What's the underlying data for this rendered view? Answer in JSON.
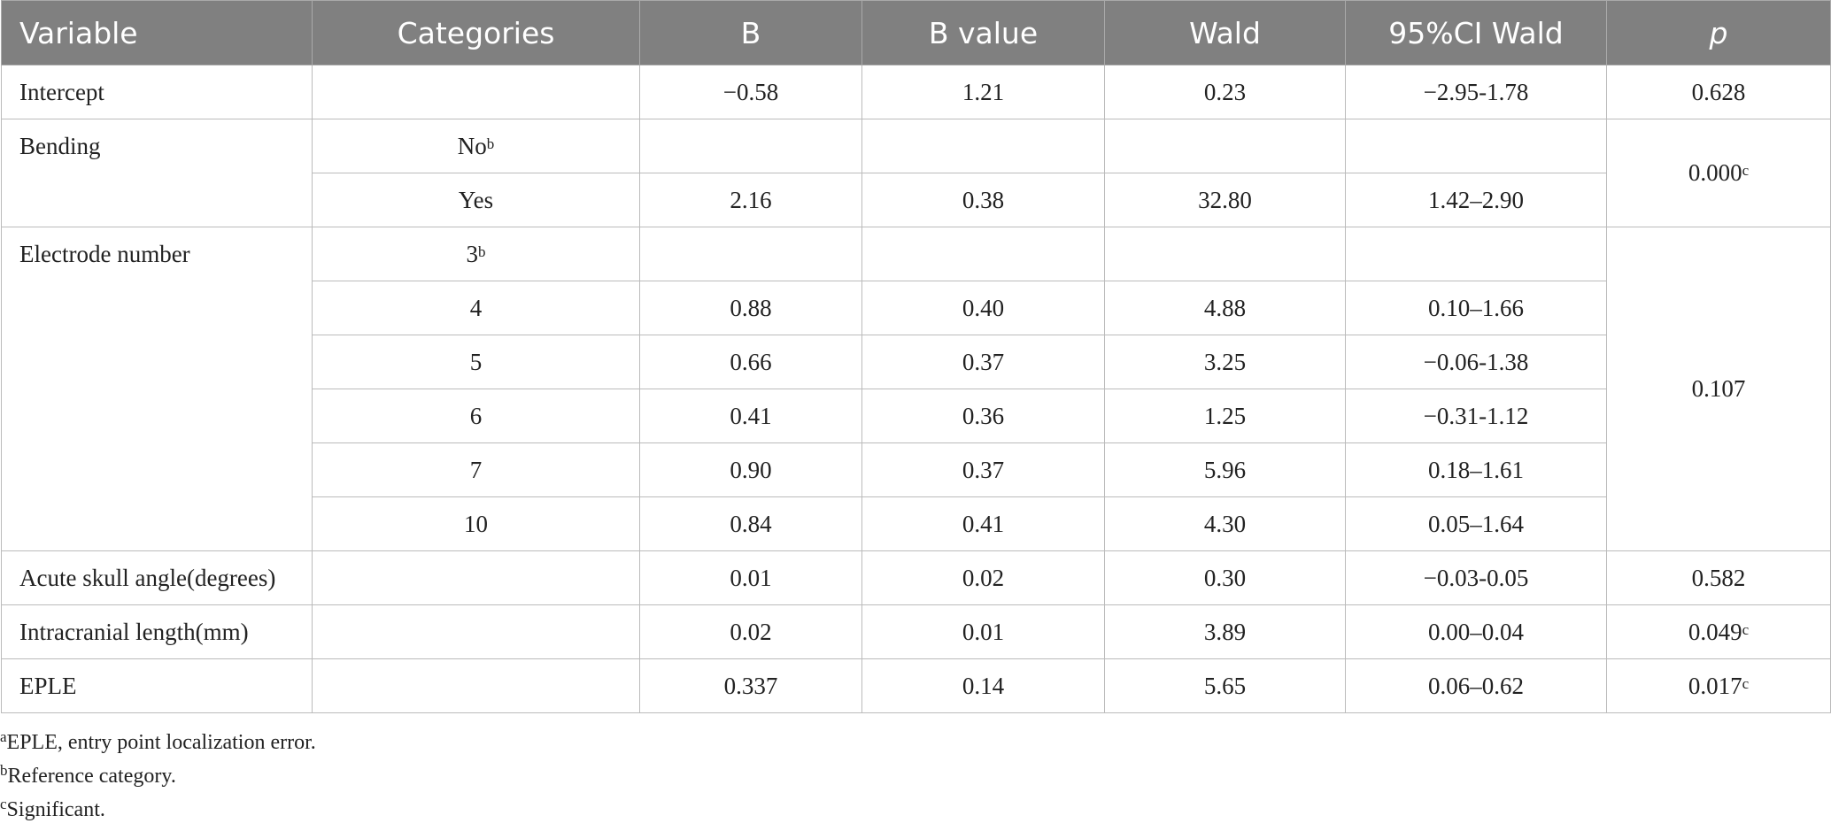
{
  "table": {
    "headers": [
      "Variable",
      "Categories",
      "B",
      "B value",
      "Wald",
      "95%CI Wald",
      "p"
    ],
    "groups": [
      {
        "variable": "Intercept",
        "p": "0.628",
        "levels": [
          {
            "b": "−0.58",
            "b_value": "1.21",
            "wald": "0.23",
            "ci": "−2.95-1.78"
          }
        ]
      },
      {
        "variable": "Bending",
        "p": {
          "text": "0.000",
          "sup": "c"
        },
        "levels": [
          {
            "category": {
              "text": "No",
              "sup": "b"
            }
          },
          {
            "category": "Yes",
            "b": "2.16",
            "b_value": "0.38",
            "wald": "32.80",
            "ci": "1.42–2.90"
          }
        ]
      },
      {
        "variable": "Electrode number",
        "p": "0.107",
        "levels": [
          {
            "category": {
              "text": "3",
              "sup": "b"
            }
          },
          {
            "category": "4",
            "b": "0.88",
            "b_value": "0.40",
            "wald": "4.88",
            "ci": "0.10–1.66"
          },
          {
            "category": "5",
            "b": "0.66",
            "b_value": "0.37",
            "wald": "3.25",
            "ci": "−0.06-1.38"
          },
          {
            "category": "6",
            "b": "0.41",
            "b_value": "0.36",
            "wald": "1.25",
            "ci": "−0.31-1.12"
          },
          {
            "category": "7",
            "b": "0.90",
            "b_value": "0.37",
            "wald": "5.96",
            "ci": "0.18–1.61"
          },
          {
            "category": "10",
            "b": "0.84",
            "b_value": "0.41",
            "wald": "4.30",
            "ci": "0.05–1.64"
          }
        ]
      },
      {
        "variable": "Acute skull angle(degrees)",
        "p": "0.582",
        "levels": [
          {
            "b": "0.01",
            "b_value": "0.02",
            "wald": "0.30",
            "ci": "−0.03-0.05"
          }
        ]
      },
      {
        "variable": "Intracranial length(mm)",
        "p": {
          "text": "0.049",
          "sup": "c"
        },
        "levels": [
          {
            "b": "0.02",
            "b_value": "0.01",
            "wald": "3.89",
            "ci": "0.00–0.04"
          }
        ]
      },
      {
        "variable": "EPLE",
        "p": {
          "text": "0.017",
          "sup": "c"
        },
        "levels": [
          {
            "b": "0.337",
            "b_value": "0.14",
            "wald": "5.65",
            "ci": "0.06–0.62"
          }
        ]
      }
    ]
  },
  "footnotes": [
    {
      "sup": "a",
      "text": "EPLE, entry point localization error."
    },
    {
      "sup": "b",
      "text": "Reference category."
    },
    {
      "sup": "c",
      "text": "Significant."
    }
  ]
}
